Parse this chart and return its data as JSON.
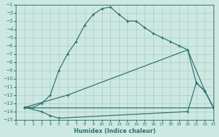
{
  "xlabel": "Humidex (Indice chaleur)",
  "xlim": [
    0,
    23
  ],
  "ylim": [
    -15,
    -1
  ],
  "yticks": [
    -1,
    -2,
    -3,
    -4,
    -5,
    -6,
    -7,
    -8,
    -9,
    -10,
    -11,
    -12,
    -13,
    -14,
    -15
  ],
  "xticks": [
    0,
    1,
    2,
    3,
    4,
    5,
    6,
    7,
    8,
    9,
    10,
    11,
    12,
    13,
    14,
    15,
    16,
    17,
    18,
    19,
    20,
    21,
    22,
    23
  ],
  "background_color": "#cce8e0",
  "grid_color": "#aaccc4",
  "line_color": "#2d7070",
  "curve1_x": [
    1,
    2,
    3,
    4,
    5,
    6,
    7,
    8,
    9,
    10,
    11,
    12,
    13,
    14,
    15,
    16,
    17,
    18,
    19,
    20,
    21,
    22,
    23
  ],
  "curve1_y": [
    -13.5,
    -13.5,
    -13.0,
    -12.0,
    -9.0,
    -7.0,
    -5.5,
    -3.5,
    -2.2,
    -1.5,
    -1.3,
    -2.2,
    -3.0,
    -3.0,
    -3.8,
    -4.5,
    -5.0,
    -5.5,
    -6.0,
    -6.5,
    -10.5,
    -11.5,
    -13.5
  ],
  "curve2_x": [
    1,
    6,
    20,
    22,
    23
  ],
  "curve2_y": [
    -13.5,
    -12.0,
    -6.5,
    -11.5,
    -13.5
  ],
  "curve3_x": [
    1,
    3,
    4,
    5,
    20,
    21,
    22,
    23
  ],
  "curve3_y": [
    -13.5,
    -14.0,
    -14.5,
    -14.8,
    -14.0,
    -10.5,
    -11.5,
    -13.5
  ],
  "curve4_x": [
    1,
    23
  ],
  "curve4_y": [
    -13.5,
    -13.5
  ],
  "marker": "+"
}
